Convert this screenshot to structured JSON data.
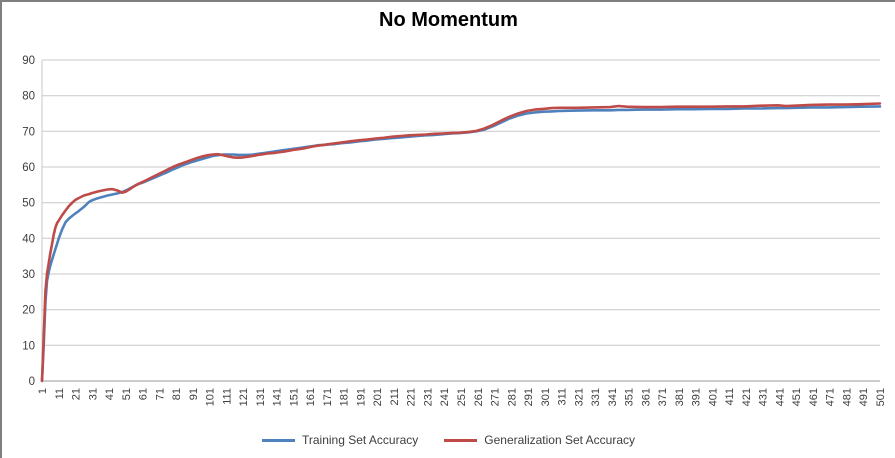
{
  "chart_data": {
    "type": "line",
    "title": "No Momentum",
    "xlabel": "",
    "ylabel": "",
    "xlim": [
      1,
      501
    ],
    "ylim": [
      0,
      90
    ],
    "grid": "horizontal",
    "legend_position": "bottom",
    "y_ticks": [
      0,
      10,
      20,
      30,
      40,
      50,
      60,
      70,
      80,
      90
    ],
    "x_tick_labels": [
      1,
      11,
      21,
      31,
      41,
      51,
      61,
      71,
      81,
      91,
      101,
      111,
      121,
      131,
      141,
      151,
      161,
      171,
      181,
      191,
      201,
      211,
      221,
      231,
      241,
      251,
      261,
      271,
      281,
      291,
      301,
      311,
      321,
      331,
      341,
      351,
      361,
      371,
      381,
      391,
      401,
      411,
      421,
      431,
      441,
      451,
      461,
      471,
      481,
      491,
      501
    ],
    "x": [
      1,
      2,
      3,
      4,
      5,
      6,
      7,
      8,
      9,
      10,
      11,
      13,
      15,
      17,
      19,
      21,
      23,
      26,
      29,
      31,
      34,
      37,
      40,
      43,
      46,
      49,
      51,
      53,
      55,
      57,
      59,
      61,
      64,
      67,
      70,
      73,
      76,
      79,
      82,
      85,
      88,
      91,
      94,
      97,
      100,
      103,
      106,
      109,
      112,
      115,
      118,
      121,
      124,
      127,
      130,
      133,
      136,
      139,
      142,
      145,
      148,
      151,
      154,
      157,
      160,
      163,
      166,
      169,
      172,
      175,
      180,
      185,
      190,
      195,
      200,
      205,
      210,
      215,
      220,
      225,
      230,
      235,
      240,
      245,
      250,
      255,
      260,
      265,
      270,
      275,
      280,
      285,
      290,
      295,
      300,
      305,
      310,
      320,
      330,
      340,
      345,
      350,
      360,
      370,
      380,
      390,
      400,
      410,
      420,
      430,
      440,
      445,
      450,
      460,
      470,
      480,
      490,
      501
    ],
    "series": [
      {
        "name": "Training Set Accuracy",
        "color": "#4F81BD",
        "values": [
          0,
          10,
          22,
          28,
          30.5,
          32.5,
          34,
          35.5,
          37,
          38.5,
          40,
          42.5,
          44.5,
          45.5,
          46.3,
          47,
          47.7,
          48.8,
          50.2,
          50.7,
          51.2,
          51.6,
          52,
          52.3,
          52.6,
          53,
          53.4,
          53.9,
          54.4,
          54.9,
          55.3,
          55.6,
          56.2,
          56.8,
          57.4,
          58,
          58.6,
          59.3,
          59.9,
          60.5,
          61,
          61.5,
          61.9,
          62.3,
          62.7,
          63.1,
          63.3,
          63.5,
          63.5,
          63.5,
          63.4,
          63.4,
          63.4,
          63.5,
          63.7,
          63.9,
          64.1,
          64.3,
          64.5,
          64.7,
          64.9,
          65.1,
          65.3,
          65.5,
          65.7,
          65.9,
          66.1,
          66.2,
          66.3,
          66.4,
          66.7,
          66.9,
          67.2,
          67.4,
          67.7,
          67.9,
          68.1,
          68.3,
          68.5,
          68.7,
          68.9,
          69,
          69.2,
          69.4,
          69.5,
          69.7,
          70,
          70.5,
          71.4,
          72.5,
          73.6,
          74.4,
          75,
          75.3,
          75.5,
          75.6,
          75.7,
          75.8,
          75.9,
          75.9,
          76,
          76,
          76.1,
          76.1,
          76.2,
          76.2,
          76.3,
          76.3,
          76.4,
          76.4,
          76.5,
          76.5,
          76.6,
          76.7,
          76.7,
          76.8,
          76.9,
          77
        ]
      },
      {
        "name": "Generalization Set Accuracy",
        "color": "#BE4B48",
        "values": [
          0,
          12,
          25,
          30,
          33,
          36,
          38.5,
          41,
          43,
          44.3,
          45,
          46.5,
          47.8,
          49,
          50,
          50.8,
          51.3,
          52,
          52.4,
          52.7,
          53.1,
          53.4,
          53.7,
          53.8,
          53.4,
          52.8,
          53.1,
          53.7,
          54.3,
          54.9,
          55.4,
          55.8,
          56.5,
          57.2,
          57.9,
          58.6,
          59.3,
          60,
          60.6,
          61.1,
          61.6,
          62.1,
          62.6,
          63,
          63.3,
          63.5,
          63.6,
          63.3,
          63,
          62.7,
          62.6,
          62.7,
          62.9,
          63.1,
          63.4,
          63.6,
          63.8,
          63.9,
          64.1,
          64.3,
          64.5,
          64.8,
          65,
          65.2,
          65.5,
          65.8,
          66,
          66.2,
          66.4,
          66.6,
          66.9,
          67.2,
          67.5,
          67.7,
          68,
          68.2,
          68.5,
          68.7,
          68.9,
          69,
          69.1,
          69.3,
          69.4,
          69.5,
          69.6,
          69.8,
          70.1,
          70.8,
          71.8,
          73,
          74.1,
          75,
          75.7,
          76.1,
          76.3,
          76.5,
          76.6,
          76.6,
          76.7,
          76.8,
          77.1,
          76.9,
          76.8,
          76.8,
          76.9,
          76.9,
          76.9,
          77,
          77,
          77.2,
          77.3,
          77.1,
          77.2,
          77.4,
          77.5,
          77.5,
          77.6,
          77.8
        ]
      }
    ]
  }
}
